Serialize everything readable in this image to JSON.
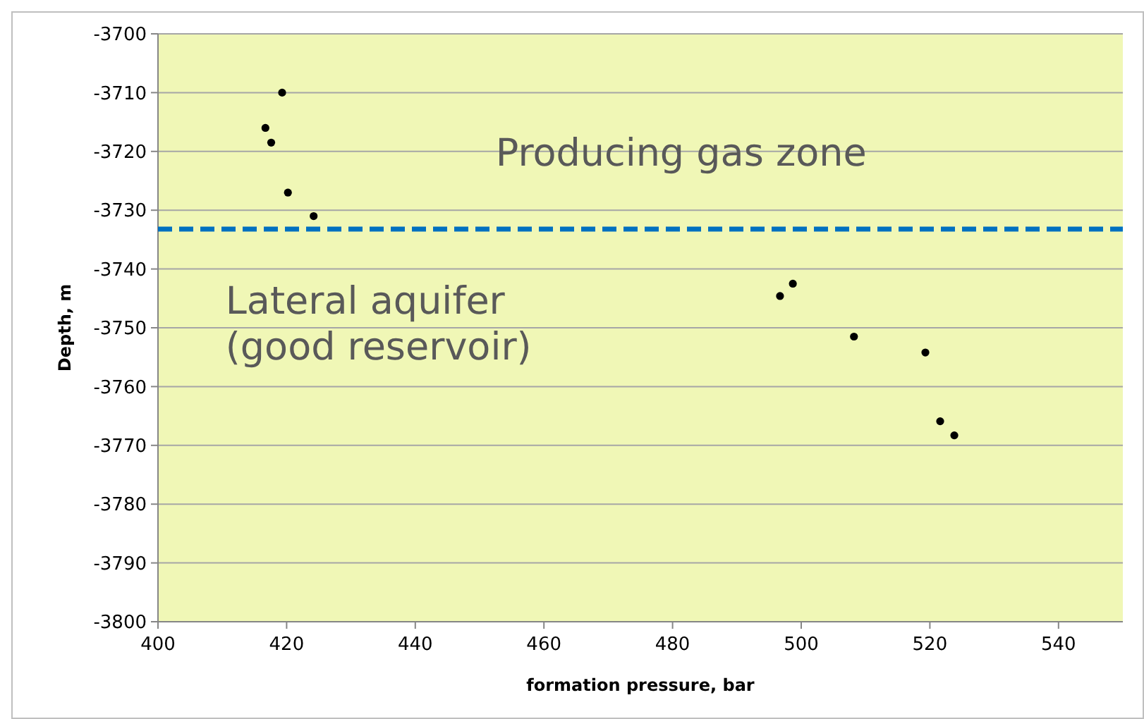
{
  "chart_data": {
    "type": "scatter",
    "xlabel": "formation pressure, bar",
    "ylabel": "Depth, m",
    "x": [
      419.3,
      416.7,
      417.6,
      420.2,
      424.2,
      496.7,
      498.7,
      508.2,
      519.3,
      521.6,
      523.8
    ],
    "values": [
      -3710,
      -3716,
      -3718.5,
      -3727,
      -3731,
      -3744.6,
      -3742.5,
      -3751.5,
      -3754.2,
      -3765.9,
      -3768.3
    ],
    "color": "#000000",
    "marker": "circle",
    "xlim": [
      400,
      550
    ],
    "xticks": [
      400,
      420,
      440,
      460,
      480,
      500,
      520,
      540
    ],
    "ylim": [
      -3800,
      -3700
    ],
    "yticks": [
      -3800,
      -3790,
      -3780,
      -3770,
      -3760,
      -3750,
      -3740,
      -3730,
      -3720,
      -3710,
      -3700
    ],
    "grid": "y",
    "ref_lines": [
      {
        "axis": "y",
        "value": -3733.2,
        "color": "#0070c0",
        "line_style": "dashed"
      }
    ],
    "annotations": [
      "Producing gas zone",
      "Lateral aquifer\n(good reservoir)"
    ]
  }
}
